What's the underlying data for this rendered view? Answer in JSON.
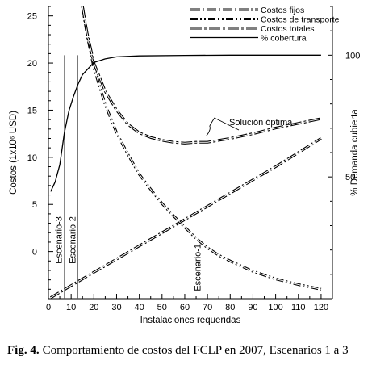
{
  "chart_data": {
    "type": "line",
    "xlabel": "Instalaciones requeridas",
    "ylabel_left": "Costos (1x10⁶ USD)",
    "ylabel_right": "% Demanda cubierta",
    "xlim": [
      0,
      125
    ],
    "ylim_left": [
      -5,
      26
    ],
    "ylim_right": [
      0,
      120
    ],
    "x_ticks": [
      0,
      10,
      20,
      30,
      40,
      50,
      60,
      70,
      80,
      90,
      100,
      110,
      120
    ],
    "y_ticks_left": [
      0,
      5,
      10,
      15,
      20,
      25
    ],
    "y_ticks_right": [
      50,
      100
    ],
    "grid": false,
    "legend_position": "top-right",
    "series": [
      {
        "name": "Costos fijos",
        "axis": "left",
        "style": "dash-dot",
        "x": [
          1,
          10,
          20,
          30,
          40,
          50,
          60,
          70,
          80,
          90,
          100,
          110,
          120
        ],
        "y": [
          -4.9,
          -3.6,
          -2.2,
          -0.8,
          0.6,
          2.0,
          3.4,
          4.8,
          6.2,
          7.6,
          9.0,
          10.5,
          12.0
        ]
      },
      {
        "name": "Costos de transporte",
        "axis": "left",
        "style": "dash-dot-dot",
        "x": [
          15,
          17,
          20,
          25,
          30,
          35,
          40,
          45,
          50,
          55,
          60,
          65,
          70,
          75,
          80,
          90,
          100,
          110,
          120
        ],
        "y": [
          26.0,
          23.0,
          19.5,
          15.6,
          12.6,
          10.3,
          8.2,
          6.6,
          5.1,
          3.8,
          2.6,
          1.4,
          0.4,
          -0.4,
          -1.0,
          -2.1,
          -2.9,
          -3.5,
          -4.0
        ]
      },
      {
        "name": "Costos totales",
        "axis": "left",
        "style": "long-dash-dot",
        "x": [
          15,
          17,
          20,
          25,
          30,
          35,
          40,
          45,
          50,
          55,
          60,
          65,
          70,
          75,
          80,
          90,
          100,
          110,
          120
        ],
        "y": [
          26.0,
          23.2,
          20.0,
          17.0,
          15.0,
          13.5,
          12.6,
          12.1,
          11.8,
          11.6,
          11.5,
          11.6,
          11.6,
          11.8,
          12.0,
          12.5,
          13.1,
          13.6,
          14.1
        ]
      },
      {
        "name": "% cobertura",
        "axis": "right",
        "style": "solid",
        "x": [
          1,
          3,
          5,
          7,
          9,
          11,
          13,
          15,
          20,
          25,
          30,
          40,
          60,
          80,
          100,
          120
        ],
        "y": [
          44,
          48,
          55,
          68,
          77,
          83,
          88,
          92,
          97,
          98.5,
          99.3,
          99.7,
          99.9,
          100,
          100,
          100
        ]
      }
    ],
    "markers": [
      {
        "label": "Escenario-3",
        "x": 7
      },
      {
        "label": "Escenario-2",
        "x": 13
      },
      {
        "label": "Escenario-1",
        "x": 68
      }
    ],
    "annotations": [
      {
        "text": "Solución óptima",
        "x": 66,
        "y": 11.6
      }
    ]
  },
  "caption": {
    "label": "Fig. 4.",
    "text": "Comportamiento de costos del FCLP en 2007, Escenarios 1 a 3"
  }
}
